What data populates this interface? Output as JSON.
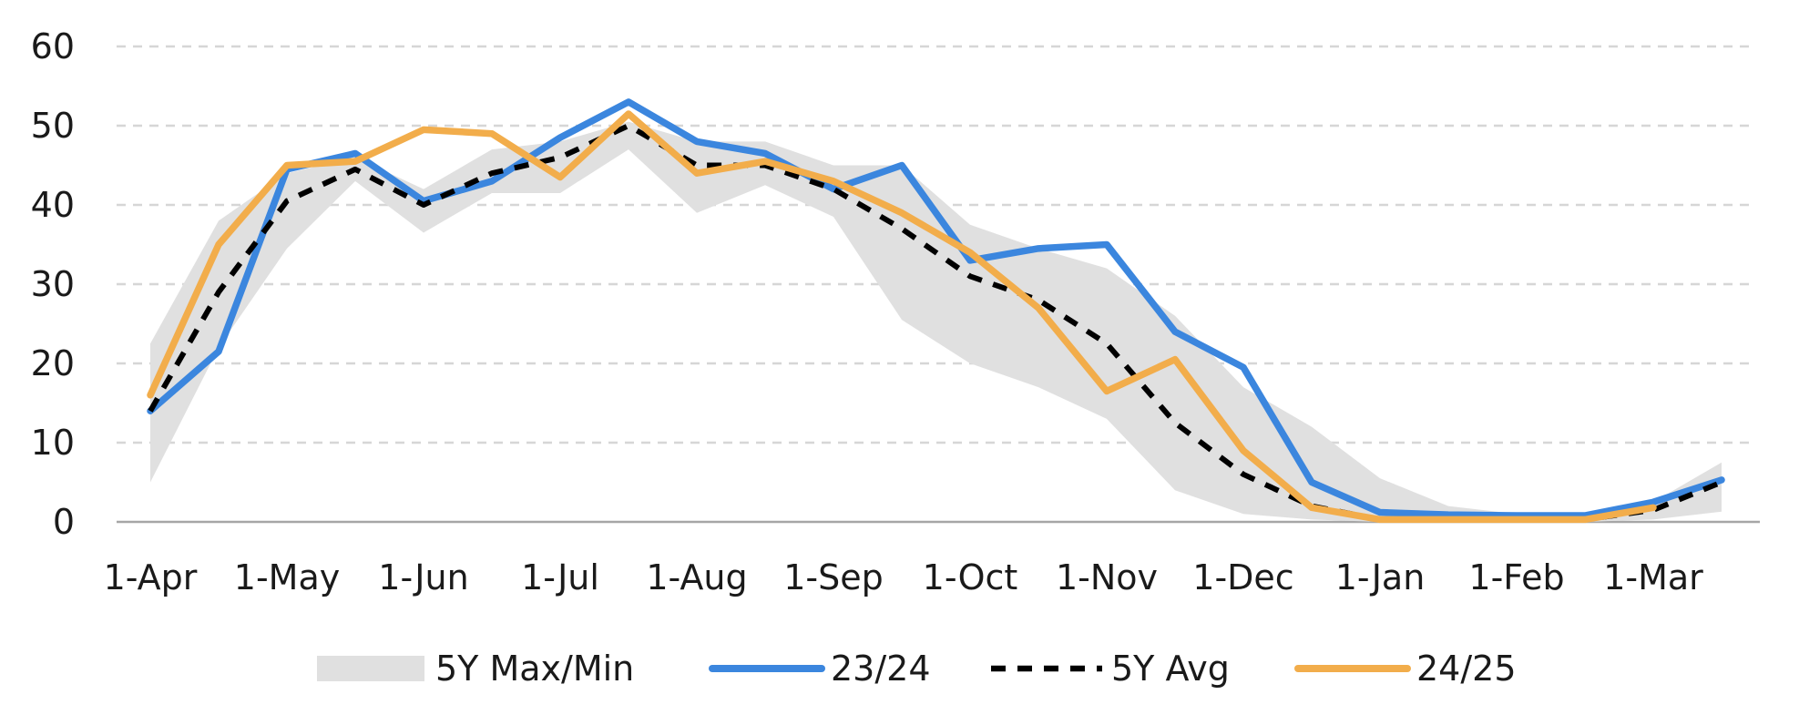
{
  "chart_data": {
    "type": "line",
    "x_categories": [
      "1-Apr",
      "1-May",
      "1-Jun",
      "1-Jul",
      "1-Aug",
      "1-Sep",
      "1-Oct",
      "1-Nov",
      "1-Dec",
      "1-Jan",
      "1-Feb",
      "1-Mar"
    ],
    "x_unit": "month index (0 = 1-Apr, 11 = 1-Mar)",
    "ylim": [
      0,
      60
    ],
    "yticks": [
      0,
      10,
      20,
      30,
      40,
      50,
      60
    ],
    "grid": true,
    "legend_position": "bottom",
    "band": {
      "name": "5Y Max/Min",
      "color": "#e0e0e0",
      "x": [
        0,
        0.5,
        1,
        1.5,
        2,
        2.5,
        3,
        3.5,
        4,
        4.5,
        5,
        5.5,
        6,
        6.5,
        7,
        7.5,
        8,
        8.5,
        9,
        9.5,
        10,
        10.5,
        11,
        11.5
      ],
      "upper": [
        22.5,
        38,
        44,
        46,
        42,
        47,
        48,
        50.5,
        48,
        48,
        45,
        45,
        37.5,
        34.5,
        32,
        26,
        17,
        12,
        5.5,
        2,
        1,
        1,
        2.5,
        7.5
      ],
      "lower": [
        5,
        22,
        34.5,
        43,
        36.5,
        41.5,
        41.5,
        47,
        39,
        42.5,
        38.5,
        25.5,
        20,
        17,
        13,
        4,
        1,
        0.3,
        0,
        0,
        0,
        0,
        0.3,
        1.3
      ]
    },
    "series": [
      {
        "name": "23/24",
        "color": "#3b86de",
        "dash": false,
        "x": [
          0,
          0.5,
          1,
          1.5,
          2,
          2.5,
          3,
          3.5,
          4,
          4.5,
          5,
          5.5,
          6,
          6.5,
          7,
          7.5,
          8,
          8.5,
          9,
          9.5,
          10,
          10.5,
          11,
          11.5
        ],
        "y": [
          14,
          21.5,
          44.5,
          46.5,
          40.5,
          43,
          48.5,
          53,
          48,
          46.5,
          42,
          45,
          33,
          34.5,
          35,
          24,
          19.5,
          5,
          1.2,
          0.9,
          0.8,
          0.8,
          2.5,
          5.3
        ]
      },
      {
        "name": "5Y Avg",
        "color": "#000000",
        "dash": true,
        "x": [
          0,
          0.5,
          1,
          1.5,
          2,
          2.5,
          3,
          3.5,
          4,
          4.5,
          5,
          5.5,
          6,
          6.5,
          7,
          7.5,
          8,
          8.5,
          9,
          9.5,
          10,
          10.5,
          11,
          11.5
        ],
        "y": [
          14,
          29,
          40.5,
          44.5,
          40,
          44,
          46,
          50,
          45,
          45,
          42,
          37,
          31,
          28,
          22.5,
          12.5,
          6,
          2,
          0.3,
          0.3,
          0.3,
          0.3,
          1.5,
          5
        ]
      },
      {
        "name": "24/25",
        "color": "#f2ad4b",
        "dash": false,
        "x": [
          0,
          0.5,
          1,
          1.5,
          2,
          2.5,
          3,
          3.5,
          4,
          4.5,
          5,
          5.5,
          6,
          6.5,
          7,
          7.5,
          8,
          8.5,
          9,
          9.5,
          10,
          10.5,
          11
        ],
        "y": [
          16,
          35,
          45,
          45.5,
          49.5,
          49,
          43.5,
          51.5,
          44,
          45.5,
          43,
          39,
          34,
          27,
          16.5,
          20.5,
          9,
          1.8,
          0.3,
          0.3,
          0.3,
          0.3,
          1.8
        ]
      }
    ],
    "legend": [
      "5Y Max/Min",
      "23/24",
      "5Y Avg",
      "24/25"
    ]
  }
}
